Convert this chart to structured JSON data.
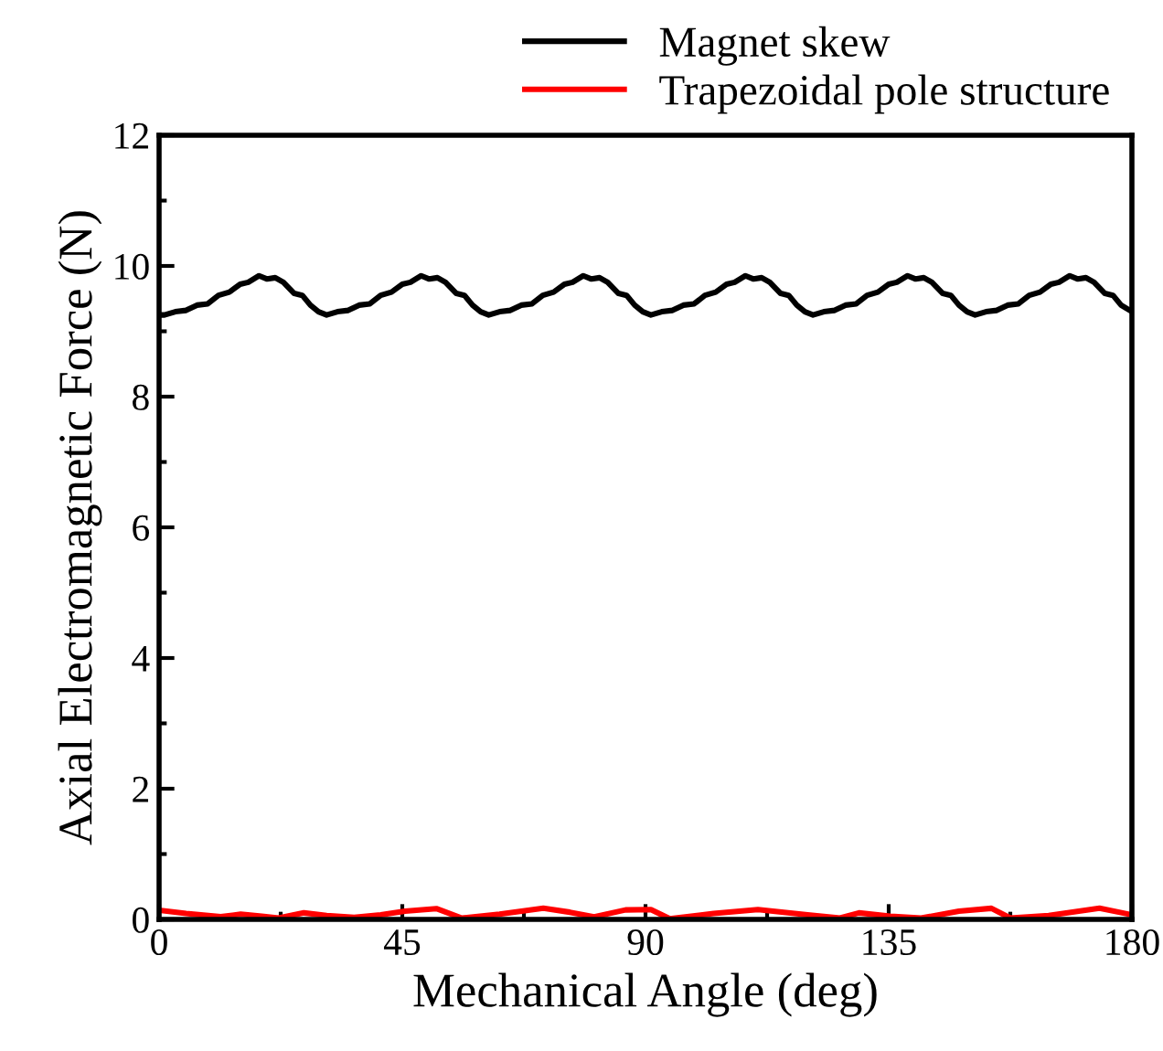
{
  "chart_data": {
    "type": "line",
    "xlabel": "Mechanical Angle (deg)",
    "ylabel": "Axial Electromagnetic Force (N)",
    "xlim": [
      0,
      180
    ],
    "ylim": [
      0,
      12
    ],
    "xticks": [
      0,
      {
        "value": 22.5,
        "label": null
      },
      45,
      {
        "value": 67.5,
        "label": null
      },
      90,
      {
        "value": 112.5,
        "label": null
      },
      135,
      {
        "value": 157.5,
        "label": null
      },
      180
    ],
    "yticks": [
      0,
      {
        "value": 1,
        "label": null
      },
      2,
      {
        "value": 3,
        "label": null
      },
      4,
      {
        "value": 5,
        "label": null
      },
      6,
      {
        "value": 7,
        "label": null
      },
      8,
      {
        "value": 9,
        "label": null
      },
      10,
      {
        "value": 11,
        "label": null
      },
      12
    ],
    "grid": false,
    "legend": "top right",
    "line_style": "solid",
    "marker": "none",
    "series": [
      {
        "name": "Magnet skew",
        "color": "#000000",
        "x": [
          0,
          1,
          3,
          5,
          7,
          9,
          11,
          13,
          15,
          16.5,
          18.5,
          20,
          21.5,
          23,
          25,
          26.5,
          28,
          29.5,
          31,
          33,
          35,
          37,
          39,
          41,
          43,
          45,
          46.5,
          48.5,
          50,
          51.5,
          53,
          55,
          56.5,
          58,
          59.5,
          61,
          63,
          65,
          67,
          69,
          71,
          73,
          75,
          76.5,
          78.5,
          80,
          81.5,
          83,
          85,
          86.5,
          88,
          89.5,
          91,
          93,
          95,
          97,
          99,
          101,
          103,
          105,
          106.5,
          108.5,
          110,
          111.5,
          113,
          115,
          116.5,
          118,
          119.5,
          121,
          123,
          125,
          127,
          129,
          131,
          133,
          135,
          136.5,
          138.5,
          140,
          141.5,
          143,
          145,
          146.5,
          148,
          149.5,
          151,
          153,
          155,
          157,
          159,
          161,
          163,
          165,
          166.5,
          168.5,
          170,
          171.5,
          173,
          175,
          176.5,
          178,
          180
        ],
        "values": [
          9.25,
          9.25,
          9.3,
          9.32,
          9.4,
          9.42,
          9.55,
          9.6,
          9.72,
          9.75,
          9.85,
          9.8,
          9.82,
          9.75,
          9.58,
          9.55,
          9.4,
          9.3,
          9.25,
          9.3,
          9.32,
          9.4,
          9.42,
          9.55,
          9.6,
          9.72,
          9.75,
          9.85,
          9.8,
          9.82,
          9.75,
          9.58,
          9.55,
          9.4,
          9.3,
          9.25,
          9.3,
          9.32,
          9.4,
          9.42,
          9.55,
          9.6,
          9.72,
          9.75,
          9.85,
          9.8,
          9.82,
          9.75,
          9.58,
          9.55,
          9.4,
          9.3,
          9.25,
          9.3,
          9.32,
          9.4,
          9.42,
          9.55,
          9.6,
          9.72,
          9.75,
          9.85,
          9.8,
          9.82,
          9.75,
          9.58,
          9.55,
          9.4,
          9.3,
          9.25,
          9.3,
          9.32,
          9.4,
          9.42,
          9.55,
          9.6,
          9.72,
          9.75,
          9.85,
          9.8,
          9.82,
          9.75,
          9.58,
          9.55,
          9.4,
          9.3,
          9.25,
          9.3,
          9.32,
          9.4,
          9.42,
          9.55,
          9.6,
          9.72,
          9.75,
          9.85,
          9.8,
          9.82,
          9.75,
          9.58,
          9.55,
          9.4,
          9.3
        ]
      },
      {
        "name": "Trapezoidal pole structure",
        "color": "#ff0000",
        "x": [
          0,
          5,
          11.4,
          15.1,
          19,
          22.1,
          26.8,
          31,
          36.1,
          41,
          45.5,
          51.3,
          56,
          63,
          71.1,
          76,
          80.5,
          86.3,
          91,
          94.5,
          102.6,
          110.8,
          120,
          126,
          129.5,
          135.3,
          141,
          148,
          154,
          157.5,
          164.6,
          174,
          180
        ],
        "values": [
          0.14,
          0.09,
          0.04,
          0.08,
          0.05,
          0.02,
          0.1,
          0.06,
          0.03,
          0.07,
          0.125,
          0.165,
          0.02,
          0.08,
          0.17,
          0.11,
          0.04,
          0.145,
          0.15,
          0.01,
          0.09,
          0.15,
          0.07,
          0.02,
          0.1,
          0.05,
          0.02,
          0.125,
          0.17,
          0.02,
          0.06,
          0.17,
          0.07
        ]
      }
    ]
  }
}
